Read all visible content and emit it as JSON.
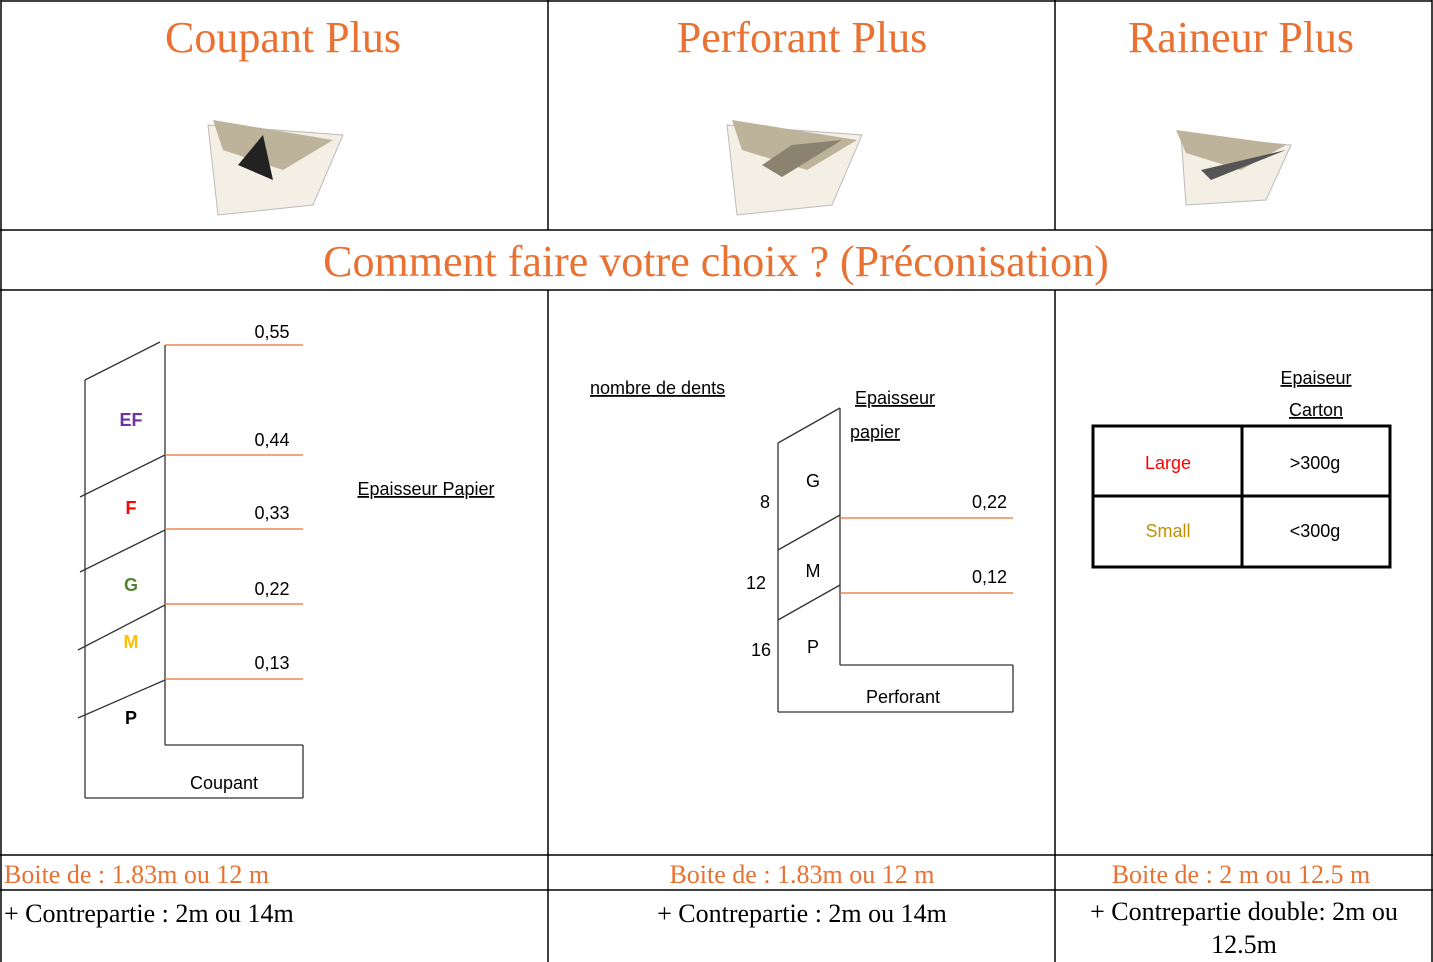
{
  "headers": [
    "Coupant Plus",
    "Perforant Plus",
    "Raineur Plus"
  ],
  "section_title": "Comment faire votre choix ? (Préconisation)",
  "coupant": {
    "grades": [
      "EF",
      "F",
      "G",
      "M",
      "P"
    ],
    "thicknesses": [
      "0,55",
      "0,44",
      "0,33",
      "0,22",
      "0,13"
    ],
    "axis_label": "Epaisseur Papier",
    "base_label": "Coupant"
  },
  "perforant": {
    "teeth_title": "nombre de dents",
    "thickness_title": [
      "Epaisseur",
      "papier"
    ],
    "grades": [
      "G",
      "M",
      "P"
    ],
    "teeth": [
      "8",
      "12",
      "16"
    ],
    "thicknesses": [
      "0,22",
      "0,12"
    ],
    "base_label": "Perforant"
  },
  "raineur": {
    "title": [
      "Epaiseur",
      "Carton"
    ],
    "rows": [
      [
        "Large",
        ">300g"
      ],
      [
        "Small",
        "<300g"
      ]
    ]
  },
  "boxes": [
    "Boite de : 1.83m ou 12 m",
    "Boite de : 1.83m ou 12 m",
    "Boite de : 2 m ou 12.5 m"
  ],
  "counterparts": [
    "+ Contrepartie : 2m ou 14m",
    "+ Contrepartie : 2m ou 14m",
    "+ Contrepartie double: 2m ou 12.5m"
  ]
}
